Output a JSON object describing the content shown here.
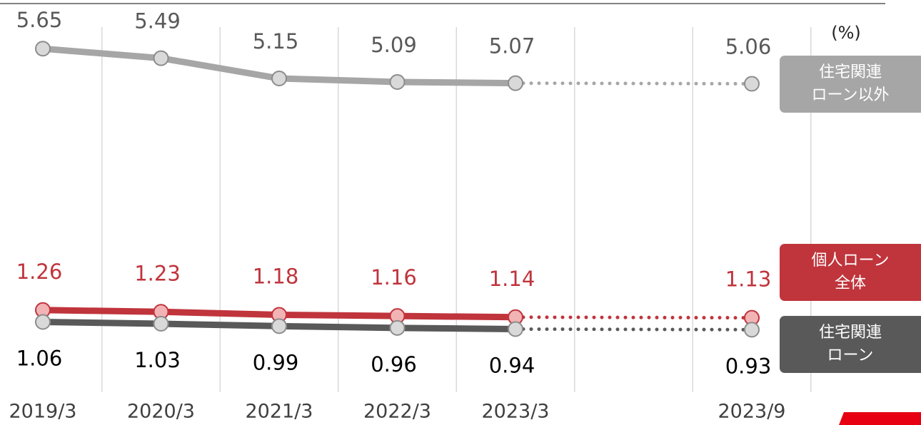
{
  "chart_data": {
    "type": "line",
    "unit": "(%)",
    "categories": [
      "2019/3",
      "2020/3",
      "2021/3",
      "2022/3",
      "2023/3",
      null,
      "2023/9"
    ],
    "series": [
      {
        "name": "住宅関連\nローン以外",
        "color": "#a6a6a6",
        "label_color": "#595959",
        "values": [
          5.65,
          5.49,
          5.15,
          5.09,
          5.07,
          null,
          5.06
        ]
      },
      {
        "name": "個人ローン\n全体",
        "color": "#c0343c",
        "label_color": "#c0343c",
        "values": [
          1.26,
          1.23,
          1.18,
          1.16,
          1.14,
          null,
          1.13
        ]
      },
      {
        "name": "住宅関連\nローン",
        "color": "#595959",
        "label_color": "#000000",
        "values": [
          1.06,
          1.03,
          0.99,
          0.96,
          0.94,
          null,
          0.93
        ]
      }
    ],
    "ylim": [
      0,
      6
    ],
    "grid": true
  }
}
